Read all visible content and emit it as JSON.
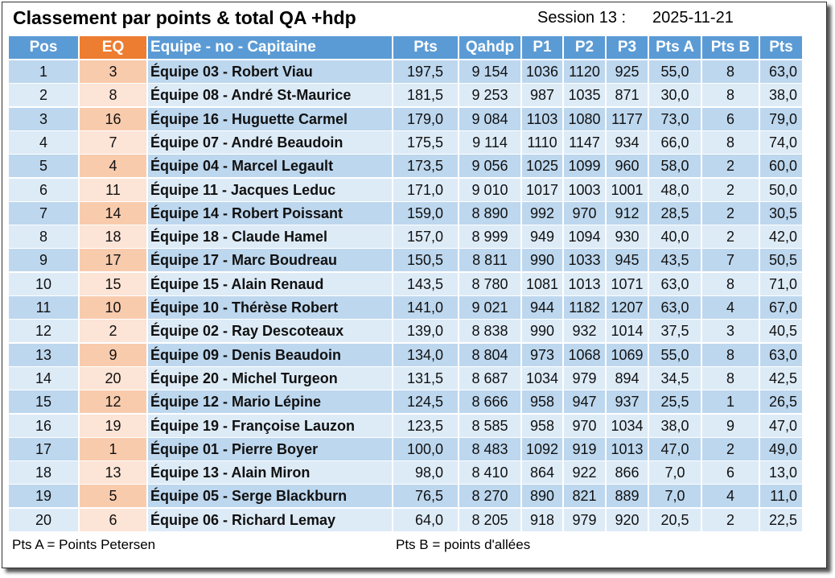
{
  "header": {
    "title": "Classement par points & total QA +hdp",
    "session": "Session 13 :",
    "date": "2025-11-21"
  },
  "table": {
    "columns": [
      "Pos",
      "EQ",
      "Equipe - no - Capitaine",
      "Pts",
      "Qahdp",
      "P1",
      "P2",
      "P3",
      "Pts A",
      "Pts B",
      "Pts"
    ],
    "rows": [
      [
        "1",
        "3",
        "Équipe 03 - Robert Viau",
        "197,5",
        "9 154",
        "1036",
        "1120",
        "925",
        "55,0",
        "8",
        "63,0"
      ],
      [
        "2",
        "8",
        "Équipe 08 - André St-Maurice",
        "181,5",
        "9 253",
        "987",
        "1035",
        "871",
        "30,0",
        "8",
        "38,0"
      ],
      [
        "3",
        "16",
        "Équipe 16 - Huguette Carmel",
        "179,0",
        "9 084",
        "1103",
        "1080",
        "1177",
        "73,0",
        "6",
        "79,0"
      ],
      [
        "4",
        "7",
        "Équipe 07 - André Beaudoin",
        "175,5",
        "9 114",
        "1110",
        "1147",
        "934",
        "66,0",
        "8",
        "74,0"
      ],
      [
        "5",
        "4",
        "Équipe 04 - Marcel Legault",
        "173,5",
        "9 056",
        "1025",
        "1099",
        "960",
        "58,0",
        "2",
        "60,0"
      ],
      [
        "6",
        "11",
        "Équipe 11 - Jacques Leduc",
        "171,0",
        "9 010",
        "1017",
        "1003",
        "1001",
        "48,0",
        "2",
        "50,0"
      ],
      [
        "7",
        "14",
        "Équipe 14 - Robert Poissant",
        "159,0",
        "8 890",
        "992",
        "970",
        "912",
        "28,5",
        "2",
        "30,5"
      ],
      [
        "8",
        "18",
        "Équipe 18 - Claude Hamel",
        "157,0",
        "8 999",
        "949",
        "1094",
        "930",
        "40,0",
        "2",
        "42,0"
      ],
      [
        "9",
        "17",
        "Équipe 17 - Marc Boudreau",
        "150,5",
        "8 811",
        "990",
        "1033",
        "945",
        "43,5",
        "7",
        "50,5"
      ],
      [
        "10",
        "15",
        "Équipe 15 - Alain Renaud",
        "143,5",
        "8 780",
        "1081",
        "1013",
        "1071",
        "63,0",
        "8",
        "71,0"
      ],
      [
        "11",
        "10",
        "Équipe 10 - Thérèse Robert",
        "141,0",
        "9 021",
        "944",
        "1182",
        "1207",
        "63,0",
        "4",
        "67,0"
      ],
      [
        "12",
        "2",
        "Équipe 02 - Ray Descoteaux",
        "139,0",
        "8 838",
        "990",
        "932",
        "1014",
        "37,5",
        "3",
        "40,5"
      ],
      [
        "13",
        "9",
        "Équipe 09 - Denis Beaudoin",
        "134,0",
        "8 804",
        "973",
        "1068",
        "1069",
        "55,0",
        "8",
        "63,0"
      ],
      [
        "14",
        "20",
        "Équipe 20 - Michel Turgeon",
        "131,5",
        "8 687",
        "1034",
        "979",
        "894",
        "34,5",
        "8",
        "42,5"
      ],
      [
        "15",
        "12",
        "Équipe 12 - Mario Lépine",
        "124,5",
        "8 666",
        "958",
        "947",
        "937",
        "25,5",
        "1",
        "26,5"
      ],
      [
        "16",
        "19",
        "Équipe 19 - Françoise Lauzon",
        "123,5",
        "8 585",
        "958",
        "970",
        "1034",
        "38,0",
        "9",
        "47,0"
      ],
      [
        "17",
        "1",
        "Équipe 01 - Pierre Boyer",
        "100,0",
        "8 483",
        "1092",
        "919",
        "1013",
        "47,0",
        "2",
        "49,0"
      ],
      [
        "18",
        "13",
        "Équipe 13 - Alain Miron",
        "98,0",
        "8 410",
        "864",
        "922",
        "866",
        "7,0",
        "6",
        "13,0"
      ],
      [
        "19",
        "5",
        "Équipe 05 - Serge Blackburn",
        "76,5",
        "8 270",
        "890",
        "821",
        "889",
        "7,0",
        "4",
        "11,0"
      ],
      [
        "20",
        "6",
        "Équipe 06 - Richard Lemay",
        "64,0",
        "8 205",
        "918",
        "979",
        "920",
        "20,5",
        "2",
        "22,5"
      ]
    ]
  },
  "footer": {
    "note_a": "Pts A = Points Petersen",
    "note_b": "Pts B = points d'allées"
  }
}
